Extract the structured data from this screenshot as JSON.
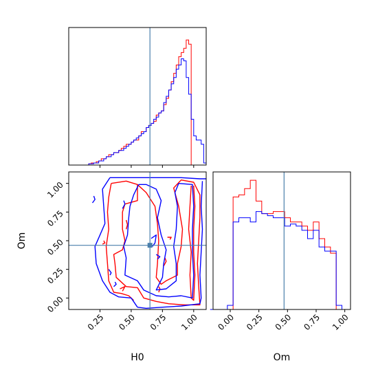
{
  "chart_data": [
    {
      "type": "histogram",
      "panel": "H0 marginal (top-left)",
      "x": [
        0.09,
        0.11,
        0.13,
        0.15,
        0.17,
        0.19,
        0.21,
        0.23,
        0.25,
        0.27,
        0.29,
        0.31,
        0.33,
        0.35,
        0.37,
        0.39,
        0.41,
        0.43,
        0.45,
        0.47,
        0.49,
        0.51,
        0.53,
        0.55,
        0.57,
        0.59,
        0.61,
        0.63,
        0.65,
        0.67,
        0.69,
        0.71,
        0.73,
        0.75,
        0.77,
        0.79,
        0.81,
        0.83,
        0.85,
        0.87,
        0.89,
        0.91,
        0.93,
        0.95,
        0.97,
        0.99,
        1.01,
        1.03,
        1.05,
        1.07,
        1.09
      ],
      "series": [
        {
          "color": "#ff0000",
          "values": [
            0,
            0,
            0,
            0,
            0.3,
            0.5,
            0.5,
            0.8,
            1,
            1.5,
            1.5,
            2,
            2.5,
            2.5,
            3,
            3,
            3.5,
            4,
            4.5,
            5,
            5,
            5.5,
            6,
            6,
            7,
            8,
            8,
            9,
            9.5,
            10,
            10.5,
            12,
            12.5,
            13,
            14.5,
            16,
            18,
            20,
            22,
            24,
            26,
            27,
            28,
            30,
            29,
            0,
            0,
            0,
            0,
            0,
            0
          ]
        },
        {
          "color": "#0000ff",
          "values": [
            0,
            0,
            0,
            0,
            0.3,
            0.3,
            0.5,
            0.5,
            1,
            1,
            1.5,
            2,
            2,
            2.5,
            3,
            3,
            3.5,
            3.5,
            4,
            4.5,
            5,
            5.5,
            6,
            6.5,
            7,
            7.5,
            8,
            9,
            9.5,
            10,
            11,
            11.5,
            12.5,
            13,
            15,
            16.5,
            18,
            19.5,
            21,
            23,
            24,
            25.5,
            25,
            21,
            17,
            11,
            7,
            6,
            6,
            5,
            0.5
          ]
        }
      ],
      "truth_x": 0.65,
      "xlim": [
        0.0,
        1.1
      ],
      "xlabel": "",
      "ylabel": ""
    },
    {
      "type": "contour",
      "panel": "H0 vs Om (bottom-left)",
      "xlabel": "H0",
      "ylabel": "Om",
      "xlim": [
        0.0,
        1.1
      ],
      "ylim": [
        -0.1,
        1.1
      ],
      "xticks": [
        "0.25",
        "0.50",
        "0.75",
        "1.00"
      ],
      "yticks": [
        "0.00",
        "0.25",
        "0.50",
        "0.75",
        "1.00"
      ],
      "truth_point": [
        0.65,
        0.46
      ],
      "series": [
        {
          "color": "#ff0000",
          "contours": [
            [
              [
                0.34,
                1.0
              ],
              [
                0.46,
                1.02
              ],
              [
                0.55,
                0.99
              ],
              [
                0.55,
                0.85
              ],
              [
                0.45,
                0.82
              ],
              [
                0.43,
                0.75
              ],
              [
                0.43,
                0.6
              ],
              [
                0.45,
                0.5
              ],
              [
                0.43,
                0.42
              ],
              [
                0.36,
                0.38
              ],
              [
                0.37,
                0.3
              ],
              [
                0.38,
                0.18
              ],
              [
                0.46,
                0.1
              ],
              [
                0.55,
                0.09
              ],
              [
                0.6,
                0.0
              ],
              [
                0.7,
                -0.03
              ],
              [
                0.8,
                -0.05
              ],
              [
                0.93,
                -0.06
              ],
              [
                1.05,
                -0.06
              ],
              [
                1.04,
                0.1
              ],
              [
                1.03,
                0.3
              ],
              [
                1.04,
                0.5
              ],
              [
                1.05,
                0.7
              ],
              [
                1.05,
                0.9
              ],
              [
                1.0,
                1.01
              ],
              [
                0.9,
                1.03
              ],
              [
                0.84,
                0.96
              ],
              [
                0.88,
                0.8
              ],
              [
                0.91,
                0.6
              ],
              [
                0.9,
                0.45
              ],
              [
                0.87,
                0.3
              ],
              [
                0.87,
                0.2
              ],
              [
                0.78,
                0.15
              ],
              [
                0.74,
                0.12
              ],
              [
                0.7,
                0.18
              ],
              [
                0.71,
                0.3
              ],
              [
                0.72,
                0.5
              ],
              [
                0.71,
                0.65
              ],
              [
                0.69,
                0.8
              ],
              [
                0.62,
                0.92
              ],
              [
                0.55,
                0.99
              ]
            ],
            [
              [
                0.34,
                1.0
              ],
              [
                0.32,
                0.88
              ],
              [
                0.31,
                0.75
              ],
              [
                0.32,
                0.6
              ],
              [
                0.3,
                0.45
              ],
              [
                0.31,
                0.3
              ],
              [
                0.32,
                0.15
              ],
              [
                0.36,
                0.05
              ],
              [
                0.42,
                0.04
              ],
              [
                0.48,
                0.02
              ],
              [
                0.52,
                -0.02
              ]
            ],
            [
              [
                0.98,
                0.98
              ],
              [
                0.97,
                0.8
              ],
              [
                0.96,
                0.6
              ],
              [
                0.98,
                0.4
              ],
              [
                0.97,
                0.2
              ],
              [
                0.98,
                0.0
              ],
              [
                1.0,
                -0.02
              ],
              [
                1.01,
                0.2
              ],
              [
                1.0,
                0.4
              ],
              [
                1.0,
                0.6
              ],
              [
                1.01,
                0.8
              ],
              [
                1.0,
                0.98
              ]
            ],
            [
              [
                0.46,
                0.6
              ],
              [
                0.47,
                0.64
              ],
              [
                0.46,
                0.68
              ]
            ],
            [
              [
                0.27,
                0.47
              ],
              [
                0.29,
                0.48
              ],
              [
                0.28,
                0.5
              ]
            ],
            [
              [
                0.41,
                0.08
              ],
              [
                0.45,
                0.1
              ],
              [
                0.43,
                0.06
              ]
            ],
            [
              [
                0.79,
                0.53
              ],
              [
                0.82,
                0.53
              ],
              [
                0.81,
                0.51
              ]
            ],
            [
              [
                0.76,
                0.28
              ],
              [
                0.78,
                0.32
              ],
              [
                0.77,
                0.35
              ]
            ],
            [
              [
                0.72,
                0.05
              ],
              [
                0.73,
                0.08
              ],
              [
                0.72,
                0.1
              ]
            ]
          ]
        },
        {
          "color": "#0000ff",
          "contours": [
            [
              [
                0.33,
                1.05
              ],
              [
                0.5,
                1.05
              ],
              [
                0.7,
                1.05
              ],
              [
                0.9,
                1.05
              ],
              [
                1.05,
                1.04
              ],
              [
                1.1,
                1.04
              ]
            ],
            [
              [
                1.07,
                1.02
              ],
              [
                1.06,
                0.8
              ],
              [
                1.07,
                0.6
              ],
              [
                1.06,
                0.4
              ],
              [
                1.05,
                0.2
              ],
              [
                1.06,
                0.0
              ],
              [
                1.05,
                -0.05
              ],
              [
                0.9,
                -0.07
              ],
              [
                0.75,
                -0.08
              ],
              [
                0.62,
                -0.09
              ],
              [
                0.55,
                -0.08
              ]
            ],
            [
              [
                0.33,
                1.05
              ],
              [
                0.27,
                0.95
              ],
              [
                0.28,
                0.8
              ],
              [
                0.29,
                0.65
              ],
              [
                0.25,
                0.55
              ],
              [
                0.21,
                0.45
              ],
              [
                0.22,
                0.3
              ],
              [
                0.27,
                0.15
              ],
              [
                0.33,
                0.05
              ],
              [
                0.4,
                0.01
              ],
              [
                0.5,
                0.0
              ],
              [
                0.55,
                -0.08
              ]
            ],
            [
              [
                0.56,
                0.99
              ],
              [
                0.52,
                0.9
              ],
              [
                0.49,
                0.8
              ],
              [
                0.48,
                0.7
              ],
              [
                0.47,
                0.55
              ],
              [
                0.44,
                0.45
              ],
              [
                0.46,
                0.35
              ],
              [
                0.45,
                0.2
              ],
              [
                0.55,
                0.15
              ],
              [
                0.6,
                0.07
              ],
              [
                0.7,
                0.02
              ],
              [
                0.8,
                0.01
              ],
              [
                0.9,
                0.02
              ],
              [
                0.99,
                0.0
              ],
              [
                1.0,
                0.2
              ],
              [
                0.99,
                0.4
              ],
              [
                0.99,
                0.6
              ],
              [
                1.0,
                0.8
              ],
              [
                0.99,
                0.99
              ],
              [
                0.88,
                1.0
              ]
            ],
            [
              [
                0.88,
                1.0
              ],
              [
                0.85,
                0.92
              ],
              [
                0.87,
                0.8
              ],
              [
                0.86,
                0.6
              ],
              [
                0.84,
                0.45
              ],
              [
                0.86,
                0.3
              ],
              [
                0.86,
                0.15
              ],
              [
                0.78,
                0.08
              ],
              [
                0.7,
                0.07
              ],
              [
                0.75,
                0.18
              ],
              [
                0.76,
                0.3
              ],
              [
                0.78,
                0.42
              ],
              [
                0.74,
                0.55
              ],
              [
                0.71,
                0.7
              ],
              [
                0.74,
                0.85
              ],
              [
                0.7,
                0.95
              ],
              [
                0.62,
                0.99
              ],
              [
                0.56,
                0.99
              ]
            ],
            [
              [
                0.19,
                0.83
              ],
              [
                0.21,
                0.86
              ],
              [
                0.2,
                0.89
              ]
            ],
            [
              [
                0.43,
                0.78
              ],
              [
                0.45,
                0.82
              ],
              [
                0.44,
                0.85
              ]
            ],
            [
              [
                0.66,
                0.52
              ],
              [
                0.7,
                0.55
              ],
              [
                0.69,
                0.48
              ],
              [
                0.67,
                0.45
              ]
            ],
            [
              [
                0.7,
                0.38
              ],
              [
                0.73,
                0.36
              ],
              [
                0.71,
                0.34
              ]
            ],
            [
              [
                0.32,
                0.25
              ],
              [
                0.34,
                0.22
              ],
              [
                0.33,
                0.2
              ]
            ],
            [
              [
                0.36,
                0.1
              ],
              [
                0.38,
                0.12
              ],
              [
                0.37,
                0.14
              ]
            ]
          ]
        }
      ]
    },
    {
      "type": "histogram",
      "panel": "Om marginal (bottom-right)",
      "xlabel": "Om",
      "ylabel": "",
      "xlim": [
        -0.15,
        1.05
      ],
      "xticks": [
        "0.00",
        "0.25",
        "0.50",
        "0.75",
        "1.00"
      ],
      "truth_x": 0.47,
      "x": [
        -0.15,
        -0.1,
        -0.05,
        0.0,
        0.05,
        0.1,
        0.15,
        0.2,
        0.25,
        0.3,
        0.35,
        0.4,
        0.45,
        0.5,
        0.55,
        0.6,
        0.65,
        0.7,
        0.75,
        0.8,
        0.85,
        0.9,
        0.95,
        1.0
      ],
      "series": [
        {
          "color": "#ff0000",
          "values": [
            0,
            0,
            0,
            0,
            27,
            27.5,
            29,
            31,
            26,
            23,
            23,
            23.5,
            23.5,
            22,
            21,
            21,
            20,
            19,
            21,
            17,
            15,
            13.5,
            0,
            0
          ]
        },
        {
          "color": "#0000ff",
          "values": [
            0,
            0,
            0,
            1,
            21,
            22,
            22,
            21,
            23.5,
            23,
            22.5,
            22,
            22,
            20,
            20.5,
            20,
            19,
            17,
            19,
            15,
            14,
            14,
            1,
            0
          ]
        }
      ]
    }
  ]
}
